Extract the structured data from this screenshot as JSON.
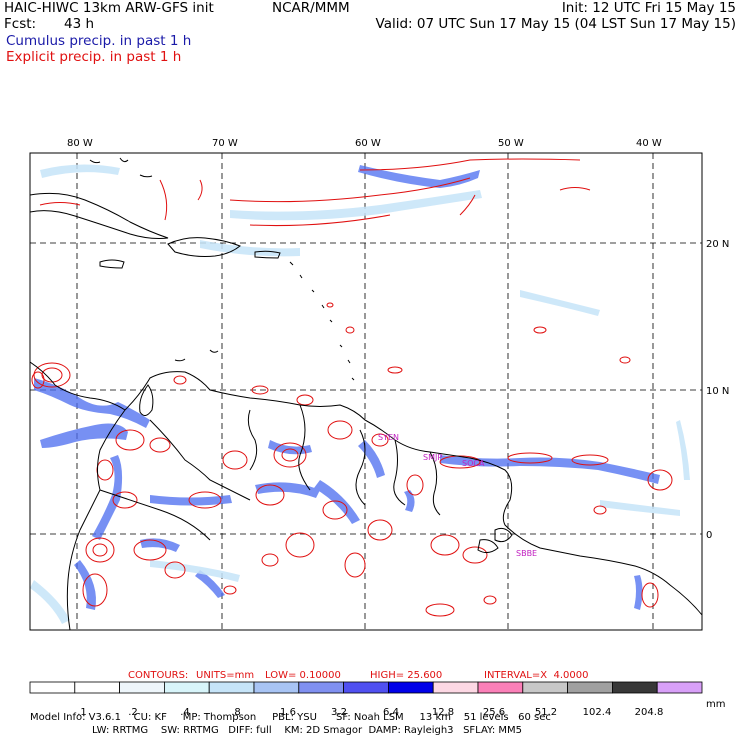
{
  "header": {
    "title_left": "HAIC-HIWC 13km ARW-GFS init",
    "title_center": "NCAR/MMM",
    "init": "Init: 12 UTC Fri 15 May 15",
    "fcst_label": "Fcst:",
    "fcst_value": "43 h",
    "valid": "Valid: 07 UTC Sun 17 May 15 (04 LST Sun 17 May 15)",
    "legend_cumulus": "Cumulus precip. in past 1 h",
    "legend_explicit": "Explicit precip. in past 1 h"
  },
  "map": {
    "lon_labels": [
      "80 W",
      "70 W",
      "60 W",
      "50 W",
      "40 W"
    ],
    "lat_labels": [
      "20 N",
      "10 N",
      "0"
    ],
    "station_labels": [
      "SYEN",
      "SMJP",
      "SOCA",
      "SBBE"
    ],
    "colors": {
      "cumulus": "#4a6cf0",
      "explicit": "#e01010",
      "coast": "#000000",
      "label": "#c020c0"
    }
  },
  "contours": {
    "prefix": "CONTOURS:",
    "units": "UNITS=mm",
    "low": "LOW= 0.10000",
    "high": "HIGH= 25.600",
    "interval": "INTERVAL=X  4.0000"
  },
  "colorbar": {
    "labels": [
      ".1",
      ".2",
      ".4",
      ".8",
      "1.6",
      "3.2",
      "6.4",
      "12.8",
      "25.6",
      "51.2",
      "102.4",
      "204.8"
    ],
    "unit": "mm",
    "colors": [
      "#ffffff",
      "#ffffff",
      "#eef6fb",
      "#d8f5fa",
      "#c6e4f8",
      "#a8c4f4",
      "#8090f0",
      "#5050f0",
      "#0000e8",
      "#fdd8e4",
      "#fb80b8",
      "#c8c8c8",
      "#a0a0a0",
      "#383838",
      "#d8a0f8"
    ]
  },
  "footer": {
    "line1": "Model Info: V3.6.1    CU: KF     MP: Thompson     PBL: YSU      SF: Noah LSM     13 km    51 levels   60 sec",
    "line2": "LW: RRTMG    SW: RRTMG   DIFF: full    KM: 2D Smagor  DAMP: Rayleigh3   SFLAY: MM5"
  }
}
